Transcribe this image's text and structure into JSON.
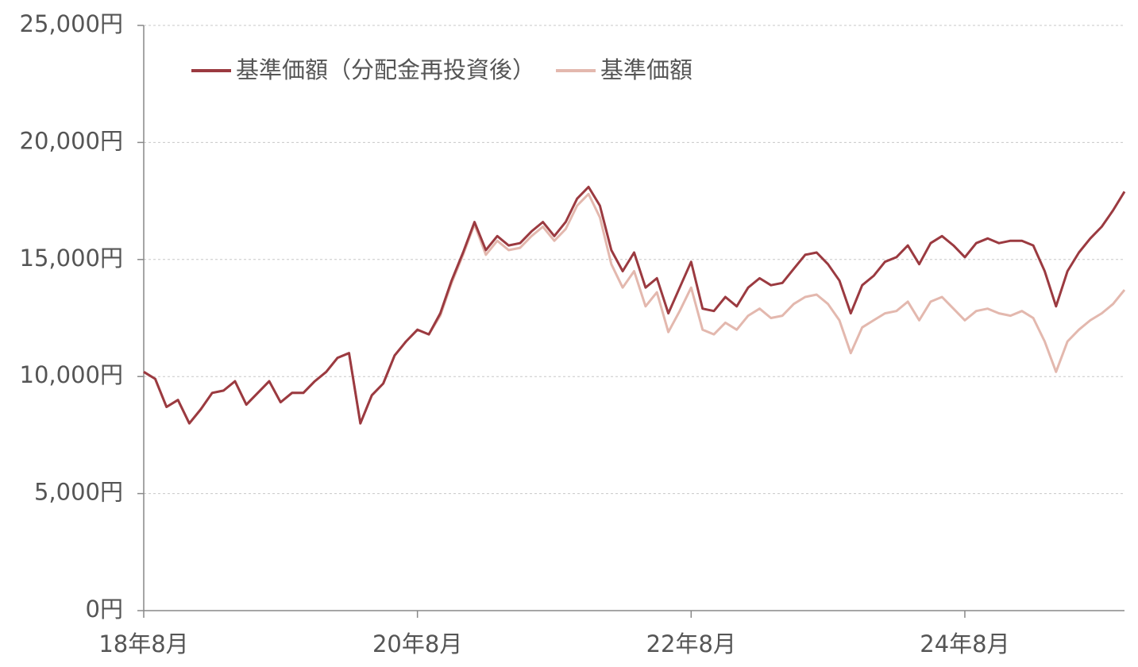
{
  "chart_data": {
    "type": "line",
    "categories": [
      "18年8月",
      null,
      null,
      null,
      null,
      null,
      null,
      null,
      null,
      null,
      null,
      null,
      null,
      null,
      null,
      null,
      null,
      null,
      null,
      null,
      null,
      null,
      null,
      null,
      "20年8月",
      null,
      null,
      null,
      null,
      null,
      null,
      null,
      null,
      null,
      null,
      null,
      null,
      null,
      null,
      null,
      null,
      null,
      null,
      null,
      null,
      null,
      null,
      null,
      "22年8月",
      null,
      null,
      null,
      null,
      null,
      null,
      null,
      null,
      null,
      null,
      null,
      null,
      null,
      null,
      null,
      null,
      null,
      null,
      null,
      null,
      null,
      null,
      null,
      "24年8月",
      null,
      null,
      null,
      null,
      null,
      null,
      null,
      null,
      null,
      null,
      null,
      null,
      null,
      null
    ],
    "series": [
      {
        "name": "基準価額（分配金再投資後）",
        "color": "#9b3a40",
        "values": [
          10200,
          9900,
          8700,
          9000,
          8000,
          8600,
          9300,
          9400,
          9800,
          8800,
          9300,
          9800,
          8900,
          9300,
          9300,
          9800,
          10200,
          10800,
          11000,
          8000,
          9200,
          9700,
          10900,
          11500,
          12000,
          11800,
          12700,
          14100,
          15300,
          16600,
          15400,
          16000,
          15600,
          15700,
          16200,
          16600,
          16000,
          16600,
          17600,
          18100,
          17300,
          15400,
          14500,
          15300,
          13800,
          14200,
          12700,
          13800,
          14900,
          12900,
          12800,
          13400,
          13000,
          13800,
          14200,
          13900,
          14000,
          14600,
          15200,
          15300,
          14800,
          14100,
          12700,
          13900,
          14300,
          14900,
          15100,
          15600,
          14800,
          15700,
          16000,
          15600,
          15100,
          15700,
          15900,
          15700,
          15800,
          15800,
          15600,
          14500,
          13000,
          14500,
          15300,
          15900,
          16400,
          17100,
          17900
        ]
      },
      {
        "name": "基準価額",
        "color": "#e3b8ae",
        "values": [
          10200,
          9900,
          8700,
          9000,
          8000,
          8600,
          9300,
          9400,
          9800,
          8800,
          9300,
          9800,
          8900,
          9300,
          9300,
          9800,
          10200,
          10800,
          11000,
          8000,
          9200,
          9700,
          10900,
          11500,
          12000,
          11800,
          12600,
          14000,
          15200,
          16500,
          15200,
          15800,
          15400,
          15500,
          16000,
          16400,
          15800,
          16300,
          17300,
          17800,
          16800,
          14800,
          13800,
          14500,
          13000,
          13600,
          11900,
          12800,
          13800,
          12000,
          11800,
          12300,
          12000,
          12600,
          12900,
          12500,
          12600,
          13100,
          13400,
          13500,
          13100,
          12400,
          11000,
          12100,
          12400,
          12700,
          12800,
          13200,
          12400,
          13200,
          13400,
          12900,
          12400,
          12800,
          12900,
          12700,
          12600,
          12800,
          12500,
          11500,
          10200,
          11500,
          12000,
          12400,
          12700,
          13100,
          13700
        ]
      }
    ],
    "ylim": [
      0,
      25000
    ],
    "yticks": [
      {
        "value": 0,
        "label": "0円"
      },
      {
        "value": 5000,
        "label": "5,000円"
      },
      {
        "value": 10000,
        "label": "10,000円"
      },
      {
        "value": 15000,
        "label": "15,000円"
      },
      {
        "value": 20000,
        "label": "20,000円"
      },
      {
        "value": 25000,
        "label": "25,000円"
      }
    ],
    "grid": true
  }
}
